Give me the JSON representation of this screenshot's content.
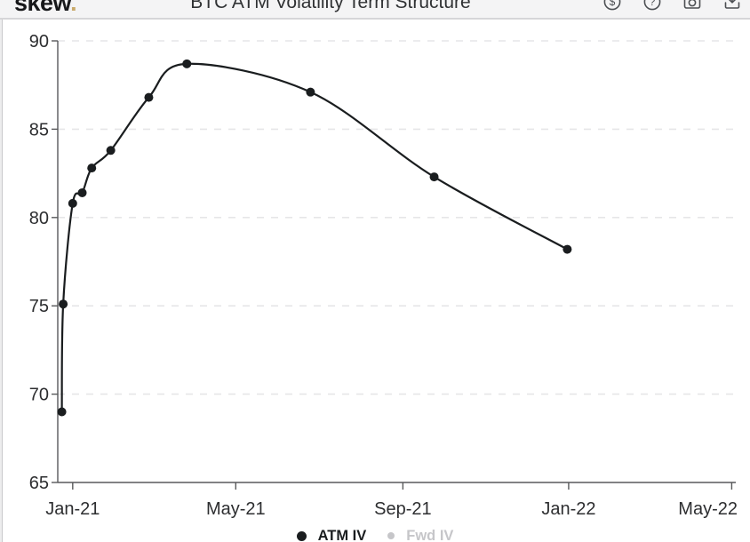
{
  "header": {
    "logo_text": "skew",
    "logo_dot": ".",
    "title": "BTC ATM Volatility Term Structure",
    "icons": [
      {
        "name": "usd-circle-icon",
        "glyph": "$"
      },
      {
        "name": "help-circle-icon",
        "glyph": "?"
      },
      {
        "name": "camera-icon",
        "glyph": ""
      },
      {
        "name": "download-icon",
        "glyph": ""
      }
    ]
  },
  "legend": {
    "items": [
      {
        "label": "ATM IV",
        "active": true,
        "color": "#1a1d1f"
      },
      {
        "label": "Fwd IV",
        "active": false,
        "color": "#c6c6c9"
      }
    ]
  },
  "chart_data": {
    "type": "line",
    "title": "BTC ATM Volatility Term Structure",
    "xlabel": "",
    "ylabel": "",
    "ylim": [
      65,
      90
    ],
    "y_ticks": [
      65,
      70,
      75,
      80,
      85,
      90
    ],
    "x_ticks": [
      {
        "label": "Jan-21",
        "days": 0
      },
      {
        "label": "May-21",
        "days": 120
      },
      {
        "label": "Sep-21",
        "days": 243
      },
      {
        "label": "Jan-22",
        "days": 365
      },
      {
        "label": "May-22",
        "days": 485
      }
    ],
    "x_domain_days": [
      -11,
      488
    ],
    "grid": "horizontal-dashed",
    "legend_position": "bottom",
    "series": [
      {
        "name": "ATM IV",
        "points": [
          {
            "date": "24-Dec-20",
            "days": -8,
            "iv": 69.0
          },
          {
            "date": "25-Dec-20",
            "days": -7,
            "iv": 75.1
          },
          {
            "date": "01-Jan-21",
            "days": 0,
            "iv": 80.8
          },
          {
            "date": "08-Jan-21",
            "days": 7,
            "iv": 81.4
          },
          {
            "date": "15-Jan-21",
            "days": 14,
            "iv": 82.8
          },
          {
            "date": "29-Jan-21",
            "days": 28,
            "iv": 83.8
          },
          {
            "date": "26-Feb-21",
            "days": 56,
            "iv": 86.8
          },
          {
            "date": "26-Mar-21",
            "days": 84,
            "iv": 88.7
          },
          {
            "date": "25-Jun-21",
            "days": 175,
            "iv": 87.1
          },
          {
            "date": "24-Sep-21",
            "days": 266,
            "iv": 82.3
          },
          {
            "date": "31-Dec-21",
            "days": 364,
            "iv": 78.2
          }
        ]
      }
    ]
  },
  "colors": {
    "line": "#1a1d1f",
    "grid": "#e6e6e8",
    "axis": "#58595b",
    "label": "#2d2e30",
    "accent_gold": "#c9a96a",
    "header_bg": "#f4f4f5",
    "border": "#d6d6d8",
    "muted": "#c6c6c9"
  }
}
